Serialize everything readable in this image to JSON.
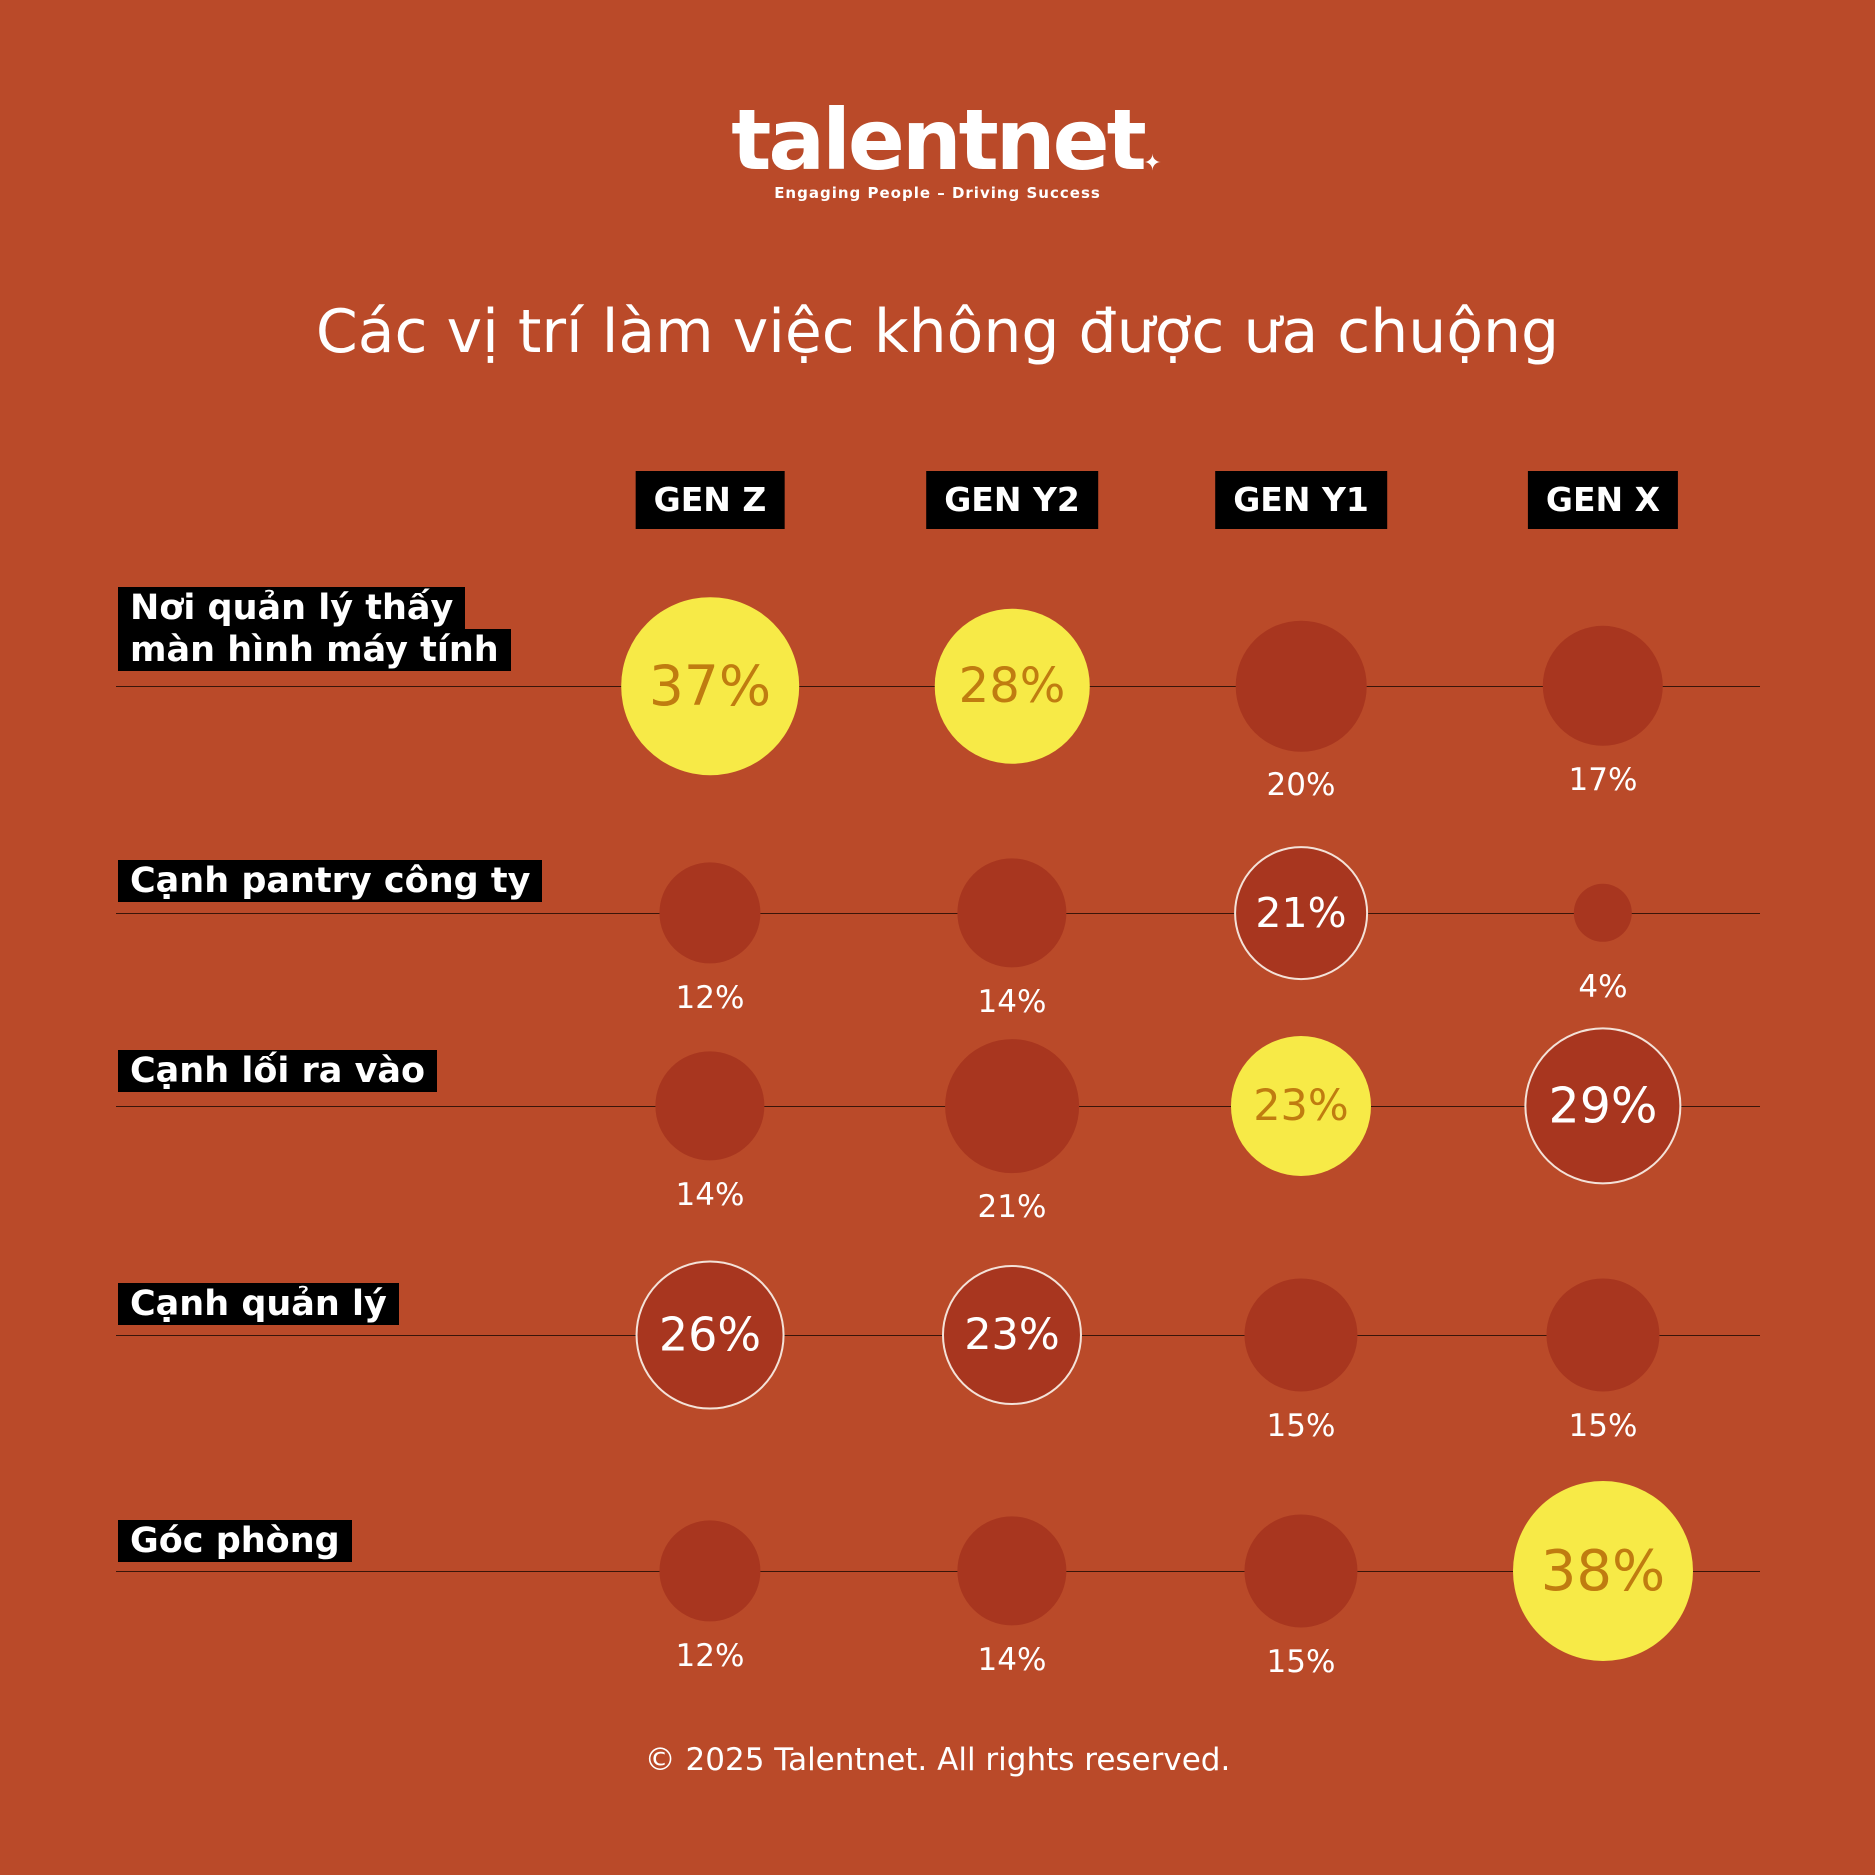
{
  "brand": {
    "name": "talentnet",
    "tagline": "Engaging People – Driving Success"
  },
  "footer": "© 2025 Talentnet. All rights reserved.",
  "colors": {
    "background": "#ba4a29",
    "bubble": "#a8361f",
    "highlight": "#f7ea47",
    "highlight_text": "#c07c10",
    "label_box": "#000000"
  },
  "chart_data": {
    "type": "bubble-matrix",
    "title": "Các vị trí làm việc không được ưa chuộng",
    "columns": [
      "GEN Z",
      "GEN Y2",
      "GEN Y1",
      "GEN X"
    ],
    "rows": [
      {
        "label": [
          "Nơi quản lý thấy",
          "màn hình máy tính"
        ],
        "values": [
          37,
          28,
          20,
          17
        ],
        "display": [
          "37%",
          "28%",
          "20%",
          "17%"
        ],
        "styles": [
          "highlight",
          "highlight",
          "plain",
          "plain"
        ]
      },
      {
        "label": [
          "Cạnh pantry công ty"
        ],
        "values": [
          12,
          14,
          21,
          4
        ],
        "display": [
          "12%",
          "14%",
          "21%",
          "4%"
        ],
        "styles": [
          "plain",
          "plain",
          "outline",
          "plain"
        ]
      },
      {
        "label": [
          "Cạnh lối ra vào"
        ],
        "values": [
          14,
          21,
          23,
          29
        ],
        "display": [
          "14%",
          "21%",
          "23%",
          "29%"
        ],
        "styles": [
          "plain",
          "plain",
          "highlight",
          "outline"
        ]
      },
      {
        "label": [
          "Cạnh quản lý"
        ],
        "values": [
          26,
          23,
          15,
          15
        ],
        "display": [
          "26%",
          "23%",
          "15%",
          "15%"
        ],
        "styles": [
          "outline",
          "outline",
          "plain",
          "plain"
        ]
      },
      {
        "label": [
          "Góc phòng"
        ],
        "values": [
          12,
          14,
          15,
          38
        ],
        "display": [
          "12%",
          "14%",
          "15%",
          "38%"
        ],
        "styles": [
          "plain",
          "plain",
          "plain",
          "highlight"
        ]
      }
    ]
  }
}
